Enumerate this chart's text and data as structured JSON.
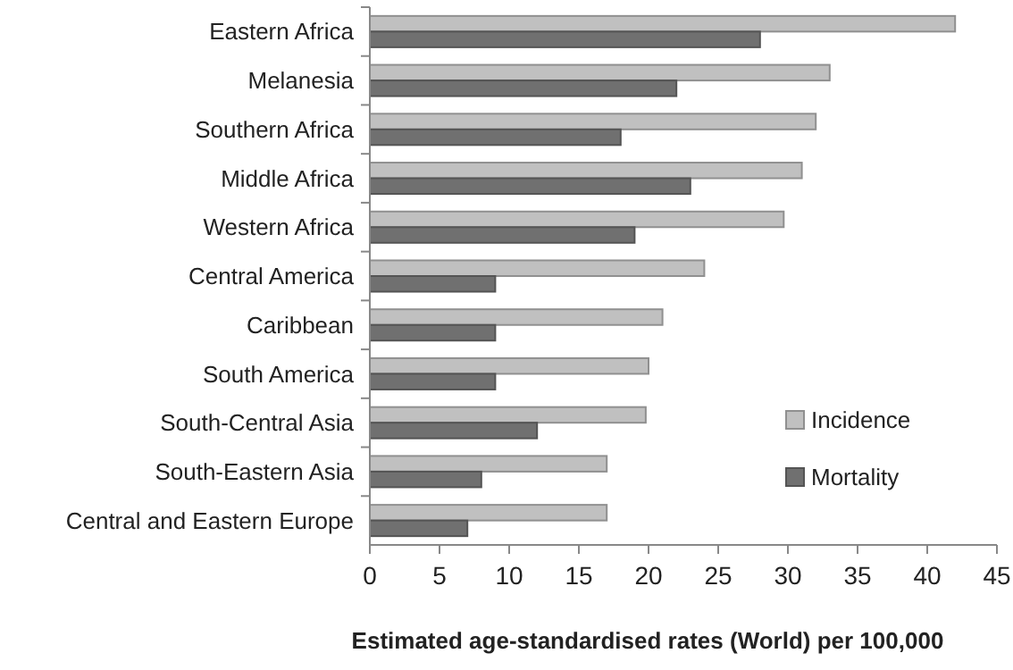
{
  "chart_data": {
    "type": "bar",
    "orientation": "horizontal",
    "xlabel": "Estimated age-standardised rates (World) per 100,000",
    "categories": [
      "Eastern Africa",
      "Melanesia",
      "Southern Africa",
      "Middle Africa",
      "Western Africa",
      "Central America",
      "Caribbean",
      "South America",
      "South-Central Asia",
      "South-Eastern Asia",
      "Central and Eastern Europe"
    ],
    "series": [
      {
        "name": "Incidence",
        "color": "#c0c0c0",
        "values": [
          42,
          33,
          32,
          31,
          29.7,
          24,
          21,
          20,
          19.8,
          17,
          17
        ]
      },
      {
        "name": "Mortality",
        "color": "#707070",
        "values": [
          28,
          22,
          18,
          23,
          19,
          9,
          9,
          9,
          12,
          8,
          7
        ]
      }
    ],
    "xlim": [
      0,
      45
    ],
    "xticks": [
      0,
      5,
      10,
      15,
      20,
      25,
      30,
      35,
      40,
      45
    ],
    "grid": false,
    "legend": "right"
  }
}
